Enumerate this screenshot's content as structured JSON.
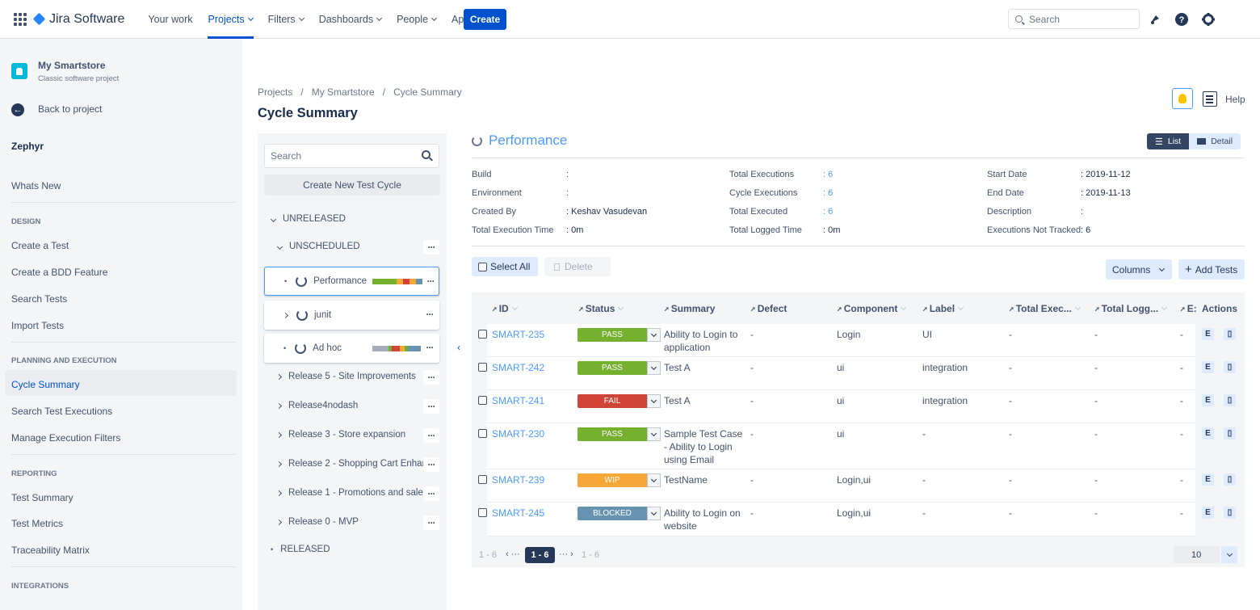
{
  "topbar": {
    "product": "Jira Software",
    "nav": [
      {
        "label": "Your work",
        "has_menu": false
      },
      {
        "label": "Projects",
        "has_menu": true,
        "active": true
      },
      {
        "label": "Filters",
        "has_menu": true
      },
      {
        "label": "Dashboards",
        "has_menu": true
      },
      {
        "label": "People",
        "has_menu": true
      },
      {
        "label": "Apps",
        "has_menu": true
      }
    ],
    "create_label": "Create",
    "search_placeholder": "Search"
  },
  "sidebar": {
    "project_name": "My Smartstore",
    "project_type": "Classic software project",
    "back_label": "Back to project",
    "section_title": "Zephyr",
    "whats_new": "Whats New",
    "design_heading": "DESIGN",
    "design_items": [
      "Create a Test",
      "Create a BDD Feature",
      "Search Tests",
      "Import Tests"
    ],
    "planning_heading": "PLANNING AND EXECUTION",
    "planning_items": [
      "Cycle Summary",
      "Search Test Executions",
      "Manage Execution Filters"
    ],
    "reporting_heading": "REPORTING",
    "reporting_items": [
      "Test Summary",
      "Test Metrics",
      "Traceability Matrix"
    ],
    "integrations_heading": "INTEGRATIONS"
  },
  "breadcrumb": [
    "Projects",
    "/",
    "My Smartstore",
    "/",
    "Cycle Summary"
  ],
  "page_title": "Cycle Summary",
  "help_label": "Help",
  "tree": {
    "search_placeholder": "Search",
    "create_cycle": "Create New Test Cycle",
    "unreleased": "UNRELEASED",
    "unscheduled": "UNSCHEDULED",
    "cycles": [
      "Performance",
      "junit",
      "Ad hoc"
    ],
    "versions": [
      "Release 5 - Site Improvements",
      "Release4nodash",
      "Release 3 - Store expansion",
      "Release 2 - Shopping Cart Enhan...",
      "Release 1 - Promotions and sales",
      "Release 0 - MVP"
    ],
    "released": "RELEASED"
  },
  "cycle": {
    "title": "Performance",
    "view_list": "List",
    "view_detail": "Detail",
    "col1": [
      {
        "label": "Build",
        "value": ":"
      },
      {
        "label": "Environment",
        "value": ":"
      },
      {
        "label": "Created By",
        "value": ":  Keshav Vasudevan"
      },
      {
        "label": "Total Execution Time",
        "value": ":  0m"
      }
    ],
    "col2": [
      {
        "label": "Total Executions",
        "value": ":  6"
      },
      {
        "label": "Cycle Executions",
        "value": ":  6"
      },
      {
        "label": "Total Executed",
        "value": ":  6"
      },
      {
        "label": "Total Logged Time",
        "value": ":  0m"
      }
    ],
    "col3": [
      {
        "label": "Start Date",
        "value": ":  2019-11-12"
      },
      {
        "label": "End Date",
        "value": ":  2019-11-13"
      },
      {
        "label": "Description",
        "value": ":"
      },
      {
        "label": "Executions Not Tracked",
        "value": ":  6"
      }
    ]
  },
  "toolbar": {
    "select_all": "Select All",
    "delete": "Delete",
    "columns": "Columns",
    "add_tests": "Add Tests"
  },
  "table": {
    "headers": [
      "ID",
      "Status",
      "Summary",
      "Defect",
      "Component",
      "Label",
      "Total Exec...",
      "Total Logg...",
      "E:",
      "Actions"
    ],
    "rows": [
      {
        "id": "SMART-235",
        "status": "PASS",
        "summary": "Ability to Login to application",
        "defect": "-",
        "component": "Login",
        "label": "UI",
        "total_exec": "-",
        "total_logged": "-",
        "e": "-"
      },
      {
        "id": "SMART-242",
        "status": "PASS",
        "summary": "Test A",
        "defect": "-",
        "component": "ui",
        "label": "integration",
        "total_exec": "-",
        "total_logged": "-",
        "e": "-"
      },
      {
        "id": "SMART-241",
        "status": "FAIL",
        "summary": "Test A",
        "defect": "-",
        "component": "ui",
        "label": "integration",
        "total_exec": "-",
        "total_logged": "-",
        "e": "-"
      },
      {
        "id": "SMART-230",
        "status": "PASS",
        "summary": "Sample Test Case - Ability to Login using Email",
        "defect": "-",
        "component": "ui",
        "label": "-",
        "total_exec": "-",
        "total_logged": "-",
        "e": "-"
      },
      {
        "id": "SMART-239",
        "status": "WIP",
        "summary": "TestName",
        "defect": "-",
        "component": "Login,ui",
        "label": "-",
        "total_exec": "-",
        "total_logged": "-",
        "e": "-"
      },
      {
        "id": "SMART-245",
        "status": "BLOCKED",
        "summary": "Ability to Login on website",
        "defect": "-",
        "component": "Login,ui",
        "label": "-",
        "total_exec": "-",
        "total_logged": "-",
        "e": "-"
      }
    ],
    "action_edit": "E",
    "action_delete_icon": "trash-icon"
  },
  "pagination": {
    "range_left": "1 - 6",
    "current": "1 - 6",
    "range_right": "1 - 6",
    "page_size": "10"
  },
  "colors": {
    "PASS": "#75b02e",
    "FAIL": "#d04437",
    "WIP": "#f6a737",
    "BLOCKED": "#6693b0",
    "accent": "#0052cc",
    "link": "#4c9aff"
  }
}
